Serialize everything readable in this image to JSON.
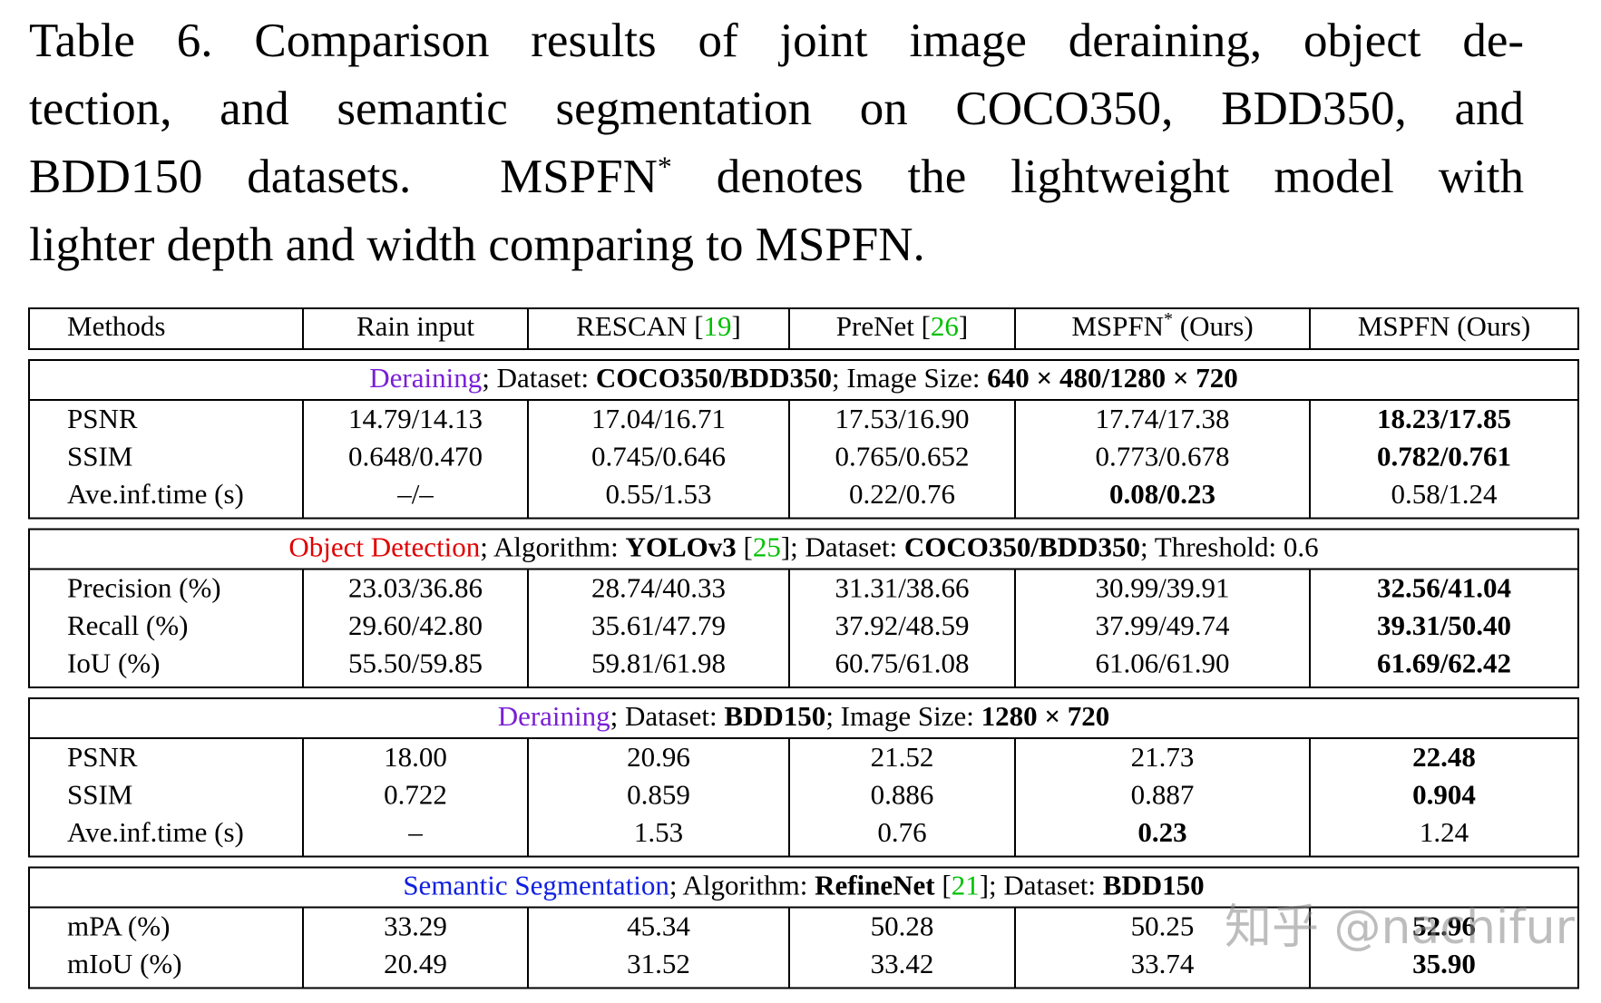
{
  "caption": {
    "lines": [
      [
        {
          "text": "Table 6. Comparison results of joint image deraining, object de-"
        }
      ],
      [
        {
          "text": "tection, and semantic segmentation on COCO350, BDD350, and"
        }
      ],
      [
        {
          "text": "BDD150 datasets.  MSPFN"
        },
        {
          "text": "*",
          "sup": true
        },
        {
          "text": " denotes the lightweight model with"
        }
      ],
      [
        {
          "text": "lighter depth and width comparing to MSPFN."
        }
      ]
    ]
  },
  "table": {
    "columns": [
      [
        {
          "text": "Methods"
        }
      ],
      [
        {
          "text": "Rain input"
        }
      ],
      [
        {
          "text": "RESCAN ["
        },
        {
          "text": "19",
          "color": "#00c000"
        },
        {
          "text": "]"
        }
      ],
      [
        {
          "text": "PreNet ["
        },
        {
          "text": "26",
          "color": "#00c000"
        },
        {
          "text": "]"
        }
      ],
      [
        {
          "text": "MSPFN"
        },
        {
          "text": "*",
          "sup": true
        },
        {
          "text": " (Ours)"
        }
      ],
      [
        {
          "text": "MSPFN (Ours)"
        }
      ]
    ],
    "sections": [
      {
        "header": [
          {
            "text": "Deraining",
            "color": "#7a1fd6"
          },
          {
            "text": "; Dataset: "
          },
          {
            "text": "COCO350/BDD350",
            "bold": true
          },
          {
            "text": "; Image Size: "
          },
          {
            "text": "640 × 480/1280 × 720",
            "bold": true
          }
        ],
        "rows": [
          {
            "label": "PSNR",
            "cells": [
              "14.79/14.13",
              "17.04/16.71",
              "17.53/16.90",
              "17.74/17.38",
              {
                "text": "18.23/17.85",
                "bold": true
              }
            ]
          },
          {
            "label": "SSIM",
            "cells": [
              "0.648/0.470",
              "0.745/0.646",
              "0.765/0.652",
              "0.773/0.678",
              {
                "text": "0.782/0.761",
                "bold": true
              }
            ]
          },
          {
            "label": "Ave.inf.time (s)",
            "cells": [
              "–/–",
              "0.55/1.53",
              "0.22/0.76",
              {
                "text": "0.08/0.23",
                "bold": true
              },
              "0.58/1.24"
            ]
          }
        ]
      },
      {
        "header": [
          {
            "text": "Object Detection",
            "color": "#e00000"
          },
          {
            "text": "; Algorithm: "
          },
          {
            "text": "YOLOv3",
            "bold": true
          },
          {
            "text": " ["
          },
          {
            "text": "25",
            "color": "#00c000"
          },
          {
            "text": "]; Dataset: "
          },
          {
            "text": "COCO350/BDD350",
            "bold": true
          },
          {
            "text": "; Threshold: 0.6"
          }
        ],
        "rows": [
          {
            "label": "Precision (%)",
            "cells": [
              "23.03/36.86",
              "28.74/40.33",
              "31.31/38.66",
              "30.99/39.91",
              {
                "text": "32.56/41.04",
                "bold": true
              }
            ]
          },
          {
            "label": "Recall (%)",
            "cells": [
              "29.60/42.80",
              "35.61/47.79",
              "37.92/48.59",
              "37.99/49.74",
              {
                "text": "39.31/50.40",
                "bold": true
              }
            ]
          },
          {
            "label": "IoU (%)",
            "cells": [
              "55.50/59.85",
              "59.81/61.98",
              "60.75/61.08",
              "61.06/61.90",
              {
                "text": "61.69/62.42",
                "bold": true
              }
            ]
          }
        ]
      },
      {
        "header": [
          {
            "text": "Deraining",
            "color": "#7a1fd6"
          },
          {
            "text": "; Dataset: "
          },
          {
            "text": "BDD150",
            "bold": true
          },
          {
            "text": "; Image Size: "
          },
          {
            "text": "1280 × 720",
            "bold": true
          }
        ],
        "rows": [
          {
            "label": "PSNR",
            "cells": [
              "18.00",
              "20.96",
              "21.52",
              "21.73",
              {
                "text": "22.48",
                "bold": true
              }
            ]
          },
          {
            "label": "SSIM",
            "cells": [
              "0.722",
              "0.859",
              "0.886",
              "0.887",
              {
                "text": "0.904",
                "bold": true
              }
            ]
          },
          {
            "label": "Ave.inf.time (s)",
            "cells": [
              "–",
              "1.53",
              "0.76",
              {
                "text": "0.23",
                "bold": true
              },
              "1.24"
            ]
          }
        ]
      },
      {
        "header": [
          {
            "text": "Semantic Segmentation",
            "color": "#1020e0"
          },
          {
            "text": "; Algorithm: "
          },
          {
            "text": "RefineNet",
            "bold": true
          },
          {
            "text": " ["
          },
          {
            "text": "21",
            "color": "#00c000"
          },
          {
            "text": "]; Dataset: "
          },
          {
            "text": "BDD150",
            "bold": true
          }
        ],
        "rows": [
          {
            "label": "mPA (%)",
            "cells": [
              "33.29",
              "45.34",
              "50.28",
              "50.25",
              {
                "text": "52.96",
                "bold": true
              }
            ]
          },
          {
            "label": "mIoU (%)",
            "cells": [
              "20.49",
              "31.52",
              "33.42",
              "33.74",
              {
                "text": "35.90",
                "bold": true
              }
            ]
          }
        ]
      }
    ]
  },
  "watermark": "知乎 @nachifur"
}
